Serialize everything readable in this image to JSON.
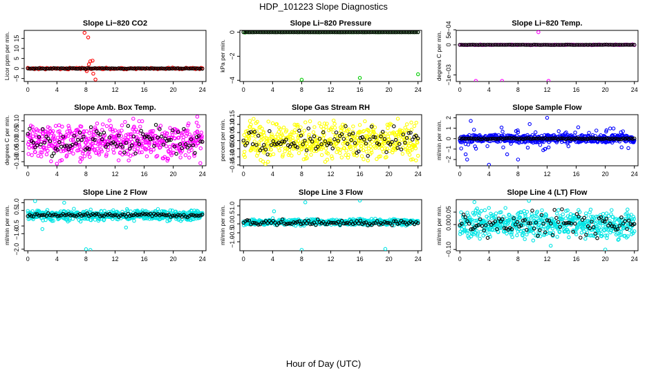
{
  "figure": {
    "title": "HDP_101223  Slope Diagnostics",
    "xlabel": "Hour of Day (UTC)"
  },
  "chart_data": [
    {
      "type": "scatter",
      "title": "Slope Li−820 CO2",
      "ylabel": "Licor ppm per min.",
      "xlim": [
        -0.5,
        24.5
      ],
      "ylim": [
        -6.5,
        19
      ],
      "xticks": [
        "0",
        "4",
        "8",
        "12",
        "16",
        "20",
        "24"
      ],
      "yticks": [
        {
          "v": -5,
          "label": "−5"
        },
        {
          "v": 0,
          "label": "0"
        },
        {
          "v": 5,
          "label": "5"
        },
        {
          "v": 10,
          "label": "10"
        },
        {
          "v": 15,
          "label": "15"
        }
      ],
      "color": "#ff0000",
      "series": [
        {
          "name": "baseline",
          "gen": {
            "kind": "band",
            "n": 130,
            "center": 0.0,
            "spread": 0.35
          }
        },
        {
          "name": "outliers",
          "points": [
            [
              7.8,
              17.8
            ],
            [
              8.3,
              15.5
            ],
            [
              8.6,
              3.6
            ],
            [
              8.9,
              3.9
            ],
            [
              8.4,
              2.1
            ],
            [
              9.0,
              -2.6
            ],
            [
              9.3,
              -5.5
            ],
            [
              8.1,
              -1.3
            ]
          ]
        },
        {
          "name": "hourly",
          "color": "#000000",
          "gen": {
            "kind": "band",
            "n": 95,
            "center": 0.0,
            "spread": 0.15
          }
        }
      ]
    },
    {
      "type": "scatter",
      "title": "Slope Li−820 Pressure",
      "ylabel": "kPa per min.",
      "xlim": [
        -0.5,
        24.5
      ],
      "ylim": [
        -4.1,
        0.15
      ],
      "xticks": [
        "0",
        "4",
        "8",
        "12",
        "16",
        "20",
        "24"
      ],
      "yticks": [
        {
          "v": -4,
          "label": "−4"
        },
        {
          "v": -2,
          "label": "−2"
        },
        {
          "v": 0,
          "label": "0"
        }
      ],
      "color": "#00cc00",
      "series": [
        {
          "name": "baseline",
          "gen": {
            "kind": "band",
            "n": 95,
            "center": 0.0,
            "spread": 0.01
          }
        },
        {
          "name": "outliers",
          "points": [
            [
              8.0,
              -3.95
            ],
            [
              16.0,
              -3.8
            ],
            [
              24.0,
              -3.5
            ],
            [
              0.2,
              -0.03
            ]
          ]
        },
        {
          "name": "hourly",
          "color": "#000000",
          "gen": {
            "kind": "band",
            "n": 95,
            "center": 0.0,
            "spread": 0.005
          }
        }
      ]
    },
    {
      "type": "scatter",
      "title": "Slope Li−820 Temp.",
      "ylabel": "degrees C per min.",
      "xlim": [
        -0.5,
        24.5
      ],
      "ylim": [
        -0.00122,
        0.00048
      ],
      "xticks": [
        "0",
        "4",
        "8",
        "12",
        "16",
        "20",
        "24"
      ],
      "yticks": [
        {
          "v": -0.001,
          "label": "−1e−03"
        },
        {
          "v": 0,
          "label": "0"
        },
        {
          "v": 0.0005,
          "label": "5e−04"
        }
      ],
      "color": "#ff00ff",
      "series": [
        {
          "name": "baseline",
          "gen": {
            "kind": "band",
            "n": 95,
            "center": 0.0,
            "spread": 1e-05
          }
        },
        {
          "name": "outliers",
          "points": [
            [
              2.2,
              -0.0012
            ],
            [
              5.8,
              -0.0012
            ],
            [
              12.2,
              -0.0012
            ],
            [
              10.8,
              0.00042
            ],
            [
              0.2,
              0.0
            ]
          ]
        },
        {
          "name": "hourly",
          "color": "#000000",
          "gen": {
            "kind": "band",
            "n": 95,
            "center": 0.0,
            "spread": 5e-06
          }
        }
      ]
    },
    {
      "type": "scatter",
      "title": "Slope Amb. Box Temp.",
      "ylabel": "degrees C per min.",
      "xlim": [
        -0.5,
        24.5
      ],
      "ylim": [
        -0.12,
        0.13
      ],
      "xticks": [
        "0",
        "4",
        "8",
        "12",
        "16",
        "20",
        "24"
      ],
      "yticks": [
        {
          "v": -0.1,
          "label": "−0.10"
        },
        {
          "v": -0.05,
          "label": "−0.05"
        },
        {
          "v": 0,
          "label": "0.00"
        },
        {
          "v": 0.05,
          "label": "0.05"
        },
        {
          "v": 0.1,
          "label": "0.10"
        }
      ],
      "color": "#ff00ff",
      "series": [
        {
          "name": "samples",
          "gen": {
            "kind": "band",
            "n": 520,
            "center": 0.0,
            "spread": 0.075
          }
        },
        {
          "name": "hourly",
          "color": "#000000",
          "gen": {
            "kind": "band",
            "n": 95,
            "center": 0.0,
            "spread": 0.06
          }
        },
        {
          "name": "outliers",
          "points": [
            [
              4.0,
              -0.11
            ],
            [
              23.3,
              0.12
            ],
            [
              7.2,
              -0.1
            ],
            [
              14.5,
              0.11
            ]
          ]
        }
      ]
    },
    {
      "type": "scatter",
      "title": "Slope Gas Stream RH",
      "ylabel": "percent per min.",
      "xlim": [
        -0.5,
        24.5
      ],
      "ylim": [
        -0.155,
        0.16
      ],
      "xticks": [
        "0",
        "4",
        "8",
        "12",
        "16",
        "20",
        "24"
      ],
      "yticks": [
        {
          "v": -0.15,
          "label": "−0.15"
        },
        {
          "v": -0.1,
          "label": "−0.10"
        },
        {
          "v": -0.05,
          "label": "−0.05"
        },
        {
          "v": 0,
          "label": "0.00"
        },
        {
          "v": 0.05,
          "label": "0.05"
        },
        {
          "v": 0.1,
          "label": "0.10"
        },
        {
          "v": 0.15,
          "label": "0.15"
        }
      ],
      "color": "#ffff00",
      "series": [
        {
          "name": "samples",
          "gen": {
            "kind": "band",
            "n": 520,
            "center": 0.0,
            "spread": 0.1
          }
        },
        {
          "name": "hourly",
          "color": "#000000",
          "gen": {
            "kind": "band",
            "n": 95,
            "center": 0.0,
            "spread": 0.07
          }
        }
      ]
    },
    {
      "type": "scatter",
      "title": "Slope Sample Flow",
      "ylabel": "ml/min per min.",
      "xlim": [
        -0.5,
        24.5
      ],
      "ylim": [
        -2.6,
        2.3
      ],
      "xticks": [
        "0",
        "4",
        "8",
        "12",
        "16",
        "20",
        "24"
      ],
      "yticks": [
        {
          "v": -2,
          "label": "−2"
        },
        {
          "v": -1,
          "label": "−1"
        },
        {
          "v": 0,
          "label": "0"
        },
        {
          "v": 1,
          "label": "1"
        },
        {
          "v": 2,
          "label": "2"
        }
      ],
      "color": "#0000ff",
      "series": [
        {
          "name": "samples",
          "gen": {
            "kind": "heavy",
            "n": 520,
            "center": 0.0,
            "spread": 0.35
          }
        },
        {
          "name": "outliers",
          "points": [
            [
              1.0,
              -2.0
            ],
            [
              4.0,
              -2.5
            ],
            [
              8.0,
              -2.0
            ],
            [
              12.0,
              2.0
            ],
            [
              1.5,
              1.7
            ],
            [
              9.6,
              1.4
            ],
            [
              0.8,
              -1.5
            ],
            [
              6.5,
              -1.5
            ]
          ]
        },
        {
          "name": "hourly",
          "color": "#000000",
          "gen": {
            "kind": "band",
            "n": 95,
            "center": 0.0,
            "spread": 0.06
          }
        }
      ]
    },
    {
      "type": "scatter",
      "title": "Slope Line 2 Flow",
      "ylabel": "ml/min per min.",
      "xlim": [
        -0.5,
        24.5
      ],
      "ylim": [
        -2.1,
        1.2
      ],
      "xticks": [
        "0",
        "4",
        "8",
        "12",
        "16",
        "20",
        "24"
      ],
      "yticks": [
        {
          "v": -2,
          "label": "−2.0"
        },
        {
          "v": -1,
          "label": "−1.0"
        },
        {
          "v": -0.5,
          "label": "−0.5"
        },
        {
          "v": 0.5,
          "label": "0.5"
        },
        {
          "v": 1.0,
          "label": "1.0"
        }
      ],
      "color": "#00e5e5",
      "series": [
        {
          "name": "samples",
          "gen": {
            "kind": "band",
            "n": 520,
            "center": 0.2,
            "spread": 0.32
          }
        },
        {
          "name": "outliers",
          "points": [
            [
              8.0,
              -2.0
            ],
            [
              8.6,
              -2.05
            ],
            [
              1.0,
              1.1
            ],
            [
              5.0,
              1.0
            ],
            [
              2.0,
              -0.7
            ],
            [
              13.5,
              -0.6
            ]
          ]
        },
        {
          "name": "hourly",
          "color": "#000000",
          "gen": {
            "kind": "band",
            "n": 95,
            "center": 0.2,
            "spread": 0.1
          }
        }
      ]
    },
    {
      "type": "scatter",
      "title": "Slope Line 3 Flow",
      "ylabel": "ml/min per min.",
      "xlim": [
        -0.5,
        24.5
      ],
      "ylim": [
        -1.5,
        1.35
      ],
      "xticks": [
        "0",
        "4",
        "8",
        "12",
        "16",
        "20",
        "24"
      ],
      "yticks": [
        {
          "v": -1,
          "label": "−1.0"
        },
        {
          "v": -0.5,
          "label": "−0.5"
        },
        {
          "v": 0,
          "label": "0.0"
        },
        {
          "v": 0.5,
          "label": "0.5"
        },
        {
          "v": 1,
          "label": "1.0"
        }
      ],
      "color": "#00e5e5",
      "series": [
        {
          "name": "samples",
          "gen": {
            "kind": "band",
            "n": 520,
            "center": 0.1,
            "spread": 0.16
          }
        },
        {
          "name": "outliers",
          "points": [
            [
              8.0,
              -1.45
            ],
            [
              16.0,
              1.3
            ],
            [
              8.5,
              1.2
            ],
            [
              19.5,
              -1.4
            ],
            [
              4.2,
              0.7
            ]
          ]
        },
        {
          "name": "hourly",
          "color": "#000000",
          "gen": {
            "kind": "band",
            "n": 95,
            "center": 0.05,
            "spread": 0.15
          }
        }
      ]
    },
    {
      "type": "scatter",
      "title": "Slope Line 4 (LT) Flow",
      "ylabel": "ml/min per min.",
      "xlim": [
        -0.5,
        24.5
      ],
      "ylim": [
        -0.105,
        0.1
      ],
      "xticks": [
        "0",
        "4",
        "8",
        "12",
        "16",
        "20",
        "24"
      ],
      "yticks": [
        {
          "v": -0.1,
          "label": "−0.10"
        },
        {
          "v": 0,
          "label": "0.00"
        },
        {
          "v": 0.05,
          "label": "0.05"
        }
      ],
      "color": "#00e5e5",
      "series": [
        {
          "name": "samples",
          "gen": {
            "kind": "band",
            "n": 560,
            "center": 0.0,
            "spread": 0.05
          }
        },
        {
          "name": "outliers",
          "points": [
            [
              20.0,
              -0.1
            ],
            [
              9.5,
              0.095
            ],
            [
              2.0,
              0.09
            ],
            [
              12.5,
              -0.085
            ]
          ]
        },
        {
          "name": "hourly",
          "color": "#000000",
          "gen": {
            "kind": "band",
            "n": 95,
            "center": 0.0,
            "spread": 0.04
          }
        }
      ]
    }
  ]
}
